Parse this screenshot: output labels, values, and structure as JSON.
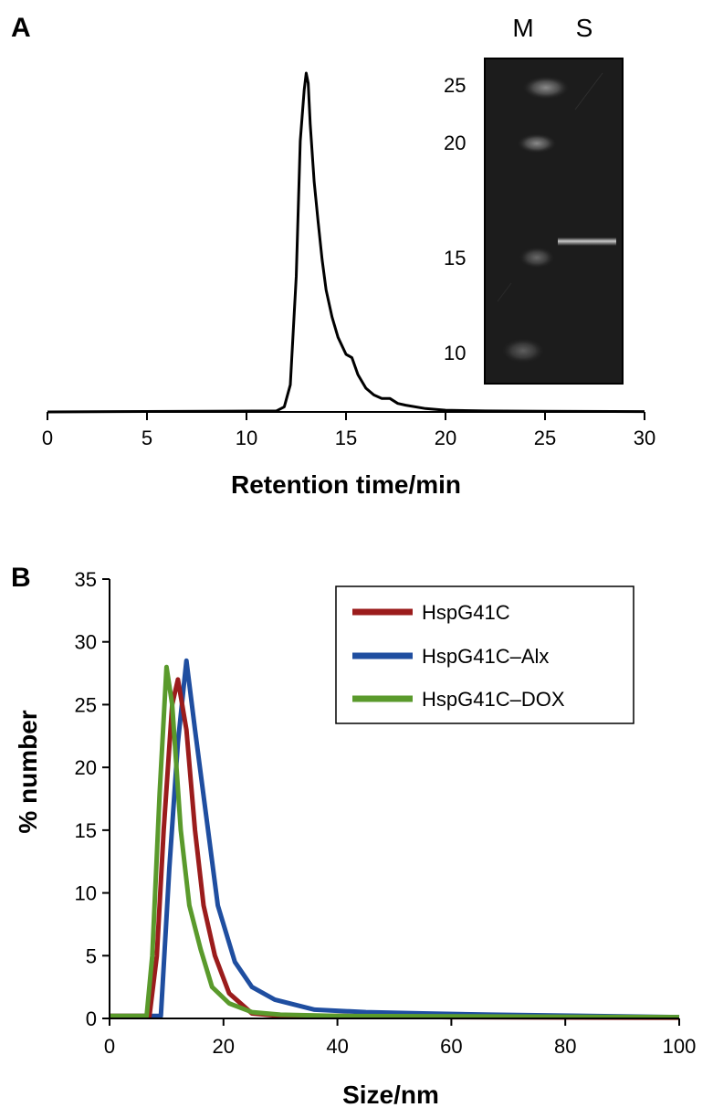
{
  "panels": [
    {
      "letter": "A"
    },
    {
      "letter": "B"
    }
  ],
  "chart_data": [
    {
      "type": "line",
      "panel": "A",
      "xlabel": "Retention time/min",
      "ylabel": "",
      "xlim": [
        0,
        30
      ],
      "xticks": [
        "0",
        "5",
        "10",
        "15",
        "20",
        "25",
        "30"
      ],
      "y_axis_visible": false,
      "grid": false,
      "series": [
        {
          "color": "#000000",
          "x": [
            0,
            11.5,
            11.9,
            12.2,
            12.5,
            12.7,
            12.9,
            13.0,
            13.1,
            13.2,
            13.4,
            13.6,
            13.8,
            14.0,
            14.3,
            14.6,
            15.0,
            15.3,
            15.6,
            16.0,
            16.4,
            16.8,
            17.2,
            17.6,
            18.0,
            19.0,
            20.0,
            22.0,
            25.0,
            30.0
          ],
          "y": [
            0,
            0.3,
            1.5,
            8,
            40,
            80,
            95,
            100,
            97,
            85,
            68,
            56,
            45,
            36,
            28,
            22,
            17,
            16,
            11,
            7,
            5,
            4,
            4,
            2.5,
            2,
            1,
            0.5,
            0.3,
            0.2,
            0.1
          ]
        }
      ],
      "inset": {
        "type": "gel",
        "lane_labels": [
          "M",
          "S"
        ],
        "marker_labels": [
          "25",
          "20",
          "15",
          "10"
        ],
        "background": "#1c1c1c"
      }
    },
    {
      "type": "line",
      "panel": "B",
      "xlabel": "Size/nm",
      "ylabel": "% number",
      "xlim": [
        0,
        100
      ],
      "ylim": [
        0,
        35
      ],
      "xticks": [
        "0",
        "20",
        "40",
        "60",
        "80",
        "100"
      ],
      "yticks": [
        "0",
        "5",
        "10",
        "15",
        "20",
        "25",
        "30",
        "35"
      ],
      "grid": false,
      "legend_position": "top-right",
      "series": [
        {
          "name": "HspG41C",
          "color": "#9b1c1c",
          "x": [
            0,
            7,
            8.3,
            9.5,
            11,
            12,
            13.5,
            15,
            16.5,
            18.5,
            21,
            25,
            30,
            40,
            60,
            100
          ],
          "y": [
            0.2,
            0.2,
            5,
            15,
            25,
            27,
            23,
            15,
            9,
            5,
            2,
            0.4,
            0.2,
            0.2,
            0.1,
            0.05
          ]
        },
        {
          "name": "HspG41C–Alx",
          "color": "#1f4ea0",
          "x": [
            0,
            9,
            10.5,
            12,
            13.5,
            15,
            17,
            19,
            22,
            25,
            29,
            36,
            45,
            55,
            67,
            100
          ],
          "y": [
            0.2,
            0.2,
            12,
            22,
            28.5,
            23,
            16,
            9,
            4.5,
            2.5,
            1.5,
            0.7,
            0.5,
            0.4,
            0.3,
            0.1
          ]
        },
        {
          "name": "HspG41C–DOX",
          "color": "#5a9a2c",
          "x": [
            0,
            6.5,
            7.5,
            8.8,
            10,
            11,
            12.5,
            14,
            16,
            18,
            21,
            25,
            30,
            40,
            100
          ],
          "y": [
            0.2,
            0.2,
            5,
            18,
            28,
            25,
            15,
            9,
            5.5,
            2.5,
            1.2,
            0.5,
            0.3,
            0.2,
            0.1
          ]
        }
      ]
    }
  ]
}
